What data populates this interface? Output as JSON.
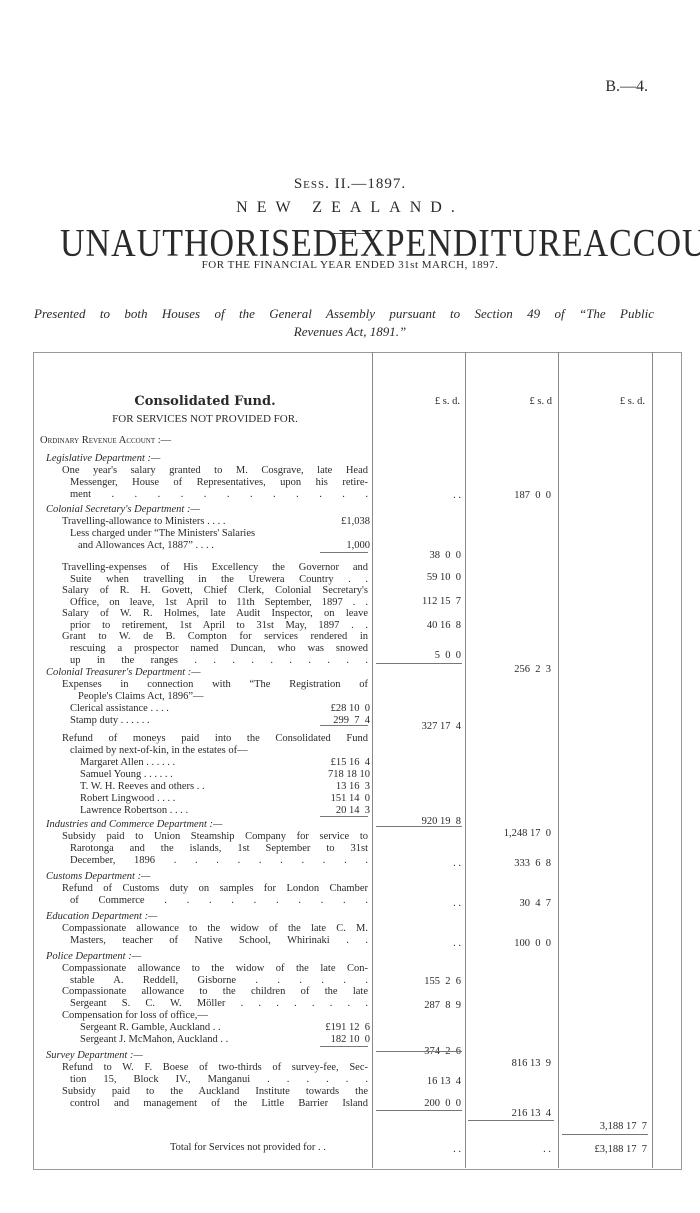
{
  "header": {
    "ref": "B.—4.",
    "session": "Sess. II.—1897.",
    "country": "NEW ZEALAND.",
    "title_words": [
      "UNAUTHORISED",
      "EXPENDITURE",
      "ACCOUNT"
    ],
    "subtitle": "FOR THE FINANCIAL YEAR ENDED 31st MARCH, 1897.",
    "presented_line1": "Presented to both Houses of the General Assembly pursuant to Section 49 of “The Public",
    "presented_line2": "Revenues Act, 1891.”"
  },
  "table": {
    "fund_title": "Consolidated Fund.",
    "fund_subtitle": "FOR SERVICES NOT PROVIDED FOR.",
    "currency_header": [
      "£ s. d.",
      "£ s. d",
      "£ s. d."
    ],
    "lines": [
      {
        "text": "Ordinary Revenue Account :—",
        "style": "sc"
      },
      {
        "text": "Legislative Department :—",
        "style": "it"
      },
      {
        "text": "One year's salary granted to M. Cosgrave, late Head",
        "style": "j"
      },
      {
        "text": "Messenger, House of Representatives, upon his retire-",
        "style": "j"
      },
      {
        "text": "ment . . . . . . . . . . . .",
        "style": "j"
      },
      {
        "text": "Colonial Secretary's Department :—",
        "style": "it"
      },
      {
        "text": "Travelling-allowance to Ministers . . . .",
        "style": "",
        "sum": "£1,038"
      },
      {
        "text": "Less charged under “The Ministers' Salaries",
        "style": ""
      },
      {
        "text": "and Allowances Act, 1887” . . . .",
        "style": "",
        "sum": "1,000"
      },
      {
        "text": "Travelling-expenses of His Excellency the Governor and",
        "style": "j"
      },
      {
        "text": "Suite when travelling in the Urewera Country . .",
        "style": "j"
      },
      {
        "text": "Salary of R. H. Govett, Chief Clerk, Colonial Secretary's",
        "style": "j"
      },
      {
        "text": "Office, on leave, 1st April to 11th September, 1897 . .",
        "style": "j"
      },
      {
        "text": "Salary of W. R. Holmes, late Audit Inspector, on leave",
        "style": "j"
      },
      {
        "text": "prior to retirement, 1st April to 31st May, 1897 . .",
        "style": "j"
      },
      {
        "text": "Grant to W. de B. Compton for services rendered in",
        "style": "j"
      },
      {
        "text": "rescuing a prospector named Duncan, who was snowed",
        "style": "j"
      },
      {
        "text": "up in the ranges . . . . . . . . . .",
        "style": "j"
      },
      {
        "text": "Colonial Treasurer's Department :—",
        "style": "it"
      },
      {
        "text": "Expenses in connection with “The Registration of",
        "style": "j"
      },
      {
        "text": "People's Claims Act, 1896”—",
        "style": ""
      },
      {
        "text": "Clerical assistance . . . .",
        "style": "",
        "sum": "£28 10  0"
      },
      {
        "text": "Stamp duty . . . . . .",
        "style": "",
        "sum": "299  7  4"
      },
      {
        "text": "Refund of moneys paid into the Consolidated Fund",
        "style": "j"
      },
      {
        "text": "claimed by next-of-kin, in the estates of—",
        "style": ""
      },
      {
        "text": "Margaret Allen . . . . . .",
        "style": "",
        "sum": "£15 16  4"
      },
      {
        "text": "Samuel Young . . . . . .",
        "style": "",
        "sum": "718 18 10"
      },
      {
        "text": "T. W. H. Reeves and others . .",
        "style": "",
        "sum": "13 16  3"
      },
      {
        "text": "Robert Lingwood . . . .",
        "style": "",
        "sum": "151 14  0"
      },
      {
        "text": "Lawrence Robertson . . . .",
        "style": "",
        "sum": "20 14  3"
      },
      {
        "text": "Industries and Commerce Department :—",
        "style": "it"
      },
      {
        "text": "Subsidy paid to Union Steamship Company for service to",
        "style": "j"
      },
      {
        "text": "Rarotonga and the islands, 1st September to 31st",
        "style": "j"
      },
      {
        "text": "December, 1896 . . . . . . . . . .",
        "style": "j"
      },
      {
        "text": "Customs Department :—",
        "style": "it"
      },
      {
        "text": "Refund of Customs duty on samples for London Chamber",
        "style": "j"
      },
      {
        "text": "of Commerce . . . . . . . . . .",
        "style": "j"
      },
      {
        "text": "Education Department :—",
        "style": "it"
      },
      {
        "text": "Compassionate allowance to the widow of the late C. M.",
        "style": "j"
      },
      {
        "text": "Masters, teacher of Native School, Whirinaki . .",
        "style": "j"
      },
      {
        "text": "Police Department :—",
        "style": "it"
      },
      {
        "text": "Compassionate allowance to the widow of the late Con-",
        "style": "j"
      },
      {
        "text": "stable A. Reddell, Gisborne . . . . . .",
        "style": "j"
      },
      {
        "text": "Compassionate allowance to the children of the late",
        "style": "j"
      },
      {
        "text": "Sergeant S. C. W. Möller . . . . . . . .",
        "style": "j"
      },
      {
        "text": "Compensation for loss of office,—",
        "style": ""
      },
      {
        "text": "Sergeant R. Gamble, Auckland . .",
        "style": "",
        "sum": "£191 12  6"
      },
      {
        "text": "Sergeant J. McMahon, Auckland . .",
        "style": "",
        "sum": "182 10  0"
      },
      {
        "text": "Survey Department :—",
        "style": "it"
      },
      {
        "text": "Refund to W. F. Boese of two-thirds of survey-fee, Sec-",
        "style": "j"
      },
      {
        "text": "tion 15, Block IV., Manganui . . . . . .",
        "style": "j"
      },
      {
        "text": "Subsidy paid to the Auckland Institute towards the",
        "style": "j"
      },
      {
        "text": "control and management of the Little Barrier Island",
        "style": "j"
      },
      {
        "text": "Total for Services not provided for . .",
        "style": ""
      }
    ],
    "amounts": [
      {
        "col": 1,
        "value": ". ."
      },
      {
        "col": 2,
        "value": "187  0  0"
      },
      {
        "col": 1,
        "value": "38  0  0"
      },
      {
        "col": 1,
        "value": "59 10  0"
      },
      {
        "col": 1,
        "value": "112 15  7"
      },
      {
        "col": 1,
        "value": "40 16  8"
      },
      {
        "col": 1,
        "value": "5  0  0"
      },
      {
        "col": 2,
        "value": "256  2  3"
      },
      {
        "col": 1,
        "value": "327 17  4"
      },
      {
        "col": 1,
        "value": "920 19  8"
      },
      {
        "col": 2,
        "value": "1,248 17  0"
      },
      {
        "col": 1,
        "value": ". ."
      },
      {
        "col": 2,
        "value": "333  6  8"
      },
      {
        "col": 1,
        "value": ". ."
      },
      {
        "col": 2,
        "value": "30  4  7"
      },
      {
        "col": 1,
        "value": ". ."
      },
      {
        "col": 2,
        "value": "100  0  0"
      },
      {
        "col": 1,
        "value": "155  2  6"
      },
      {
        "col": 1,
        "value": "287  8  9"
      },
      {
        "col": 1,
        "value": "374  2  6"
      },
      {
        "col": 2,
        "value": "816 13  9"
      },
      {
        "col": 1,
        "value": "16 13  4"
      },
      {
        "col": 1,
        "value": "200  0  0"
      },
      {
        "col": 2,
        "value": "216 13  4"
      },
      {
        "col": 3,
        "value": "3,188 17  7"
      },
      {
        "col": 1,
        "value": ". ."
      },
      {
        "col": 2,
        "value": ". ."
      },
      {
        "col": 3,
        "value": "£3,188 17  7"
      }
    ]
  }
}
